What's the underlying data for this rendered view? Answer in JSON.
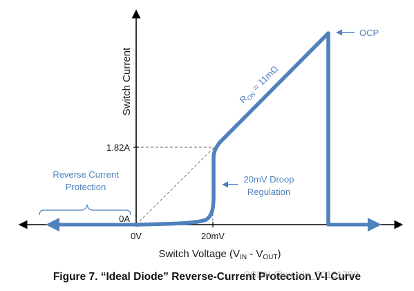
{
  "diagram": {
    "y_axis_label": "Switch Current",
    "x_axis_label": {
      "prefix": "Switch Voltage (V",
      "in_sub": "IN",
      "mid": " - V",
      "out_sub": "OUT",
      "suffix": ")"
    },
    "y_ticks": {
      "upper": "1.82A",
      "zero": "0A"
    },
    "x_ticks": {
      "zero": "0V",
      "droop": "20mV"
    },
    "annotations": {
      "reverse_line1": "Reverse Current",
      "reverse_line2": "Protection",
      "droop_line1": "20mV Droop",
      "droop_line2": "Regulation",
      "ocp": "OCP",
      "ron_r": "R",
      "ron_sub": "ON",
      "ron_value": " = 11mΩ"
    },
    "colors": {
      "curve": "#4f81bd",
      "axis": "#000000",
      "guide": "#666666"
    }
  },
  "caption": "Figure 7.  “Ideal Diode” Reverse-Current Protection V-I Curve",
  "watermark": "CSDN @weixin_50101790"
}
